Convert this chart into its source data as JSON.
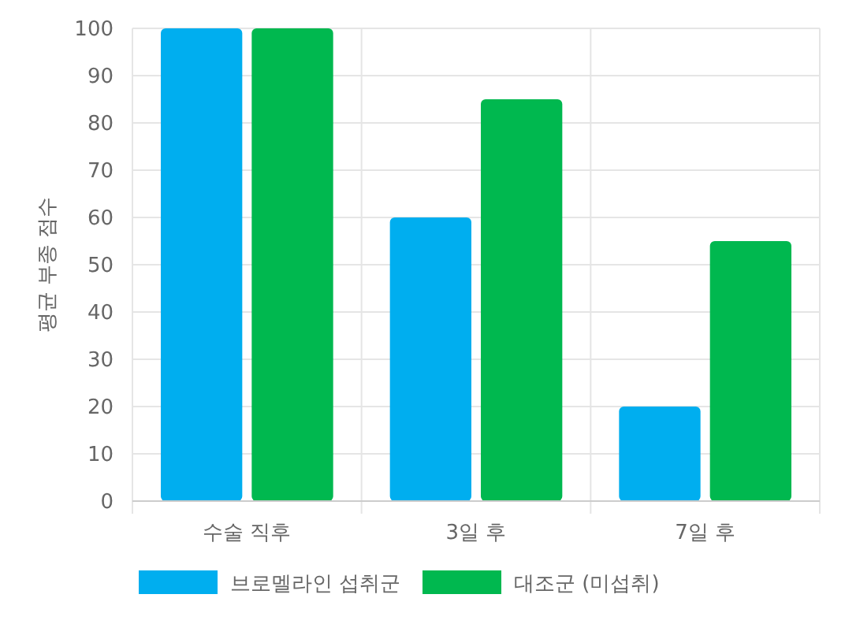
{
  "chart_data": {
    "type": "bar",
    "ylabel": "평균 부종 점수",
    "categories": [
      "수술 직후",
      "3일 후",
      "7일 후"
    ],
    "series": [
      {
        "name": "브로멜라인 섭취군",
        "color": "#00aeef",
        "values": [
          100,
          60,
          20
        ]
      },
      {
        "name": "대조군 (미섭취)",
        "color": "#00b84f",
        "values": [
          100,
          85,
          55
        ]
      }
    ],
    "ylim": [
      0,
      100
    ],
    "yticks": [
      0,
      10,
      20,
      30,
      40,
      50,
      60,
      70,
      80,
      90,
      100
    ],
    "grid": true,
    "legend": "bottom"
  }
}
